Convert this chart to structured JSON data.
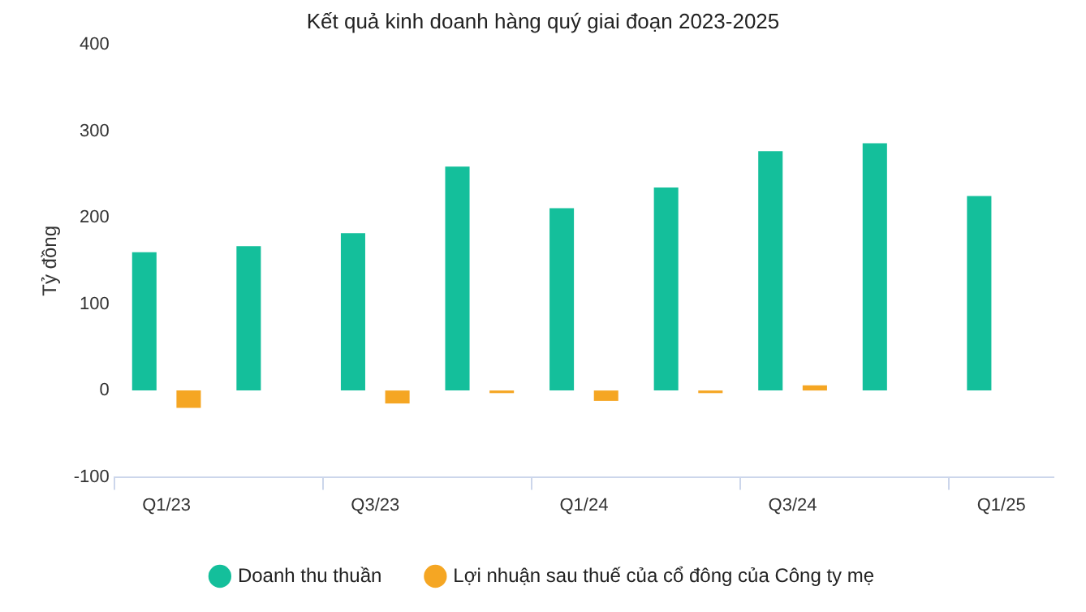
{
  "chart_data": {
    "type": "bar",
    "title": "Kết quả kinh doanh hàng quý giai đoạn 2023-2025",
    "ylabel": "Tỷ đồng",
    "categories": [
      "Q1/23",
      null,
      "Q3/23",
      null,
      "Q1/24",
      null,
      "Q3/24",
      null,
      "Q1/25"
    ],
    "series": [
      {
        "name": "Doanh thu thuần",
        "color": "#14bf9b",
        "values": [
          160,
          167,
          182,
          259,
          211,
          235,
          277,
          286,
          225
        ]
      },
      {
        "name": "Lợi nhuận sau thuế của cổ đông của Công ty mẹ",
        "color": "#f5a623",
        "values": [
          -20,
          null,
          -15,
          -3,
          -12,
          -3,
          6,
          null,
          null
        ]
      }
    ],
    "ylim": [
      -100,
      400
    ],
    "yticks": [
      -100,
      0,
      100,
      200,
      300,
      400
    ],
    "grid": false,
    "legend": "bottom"
  }
}
